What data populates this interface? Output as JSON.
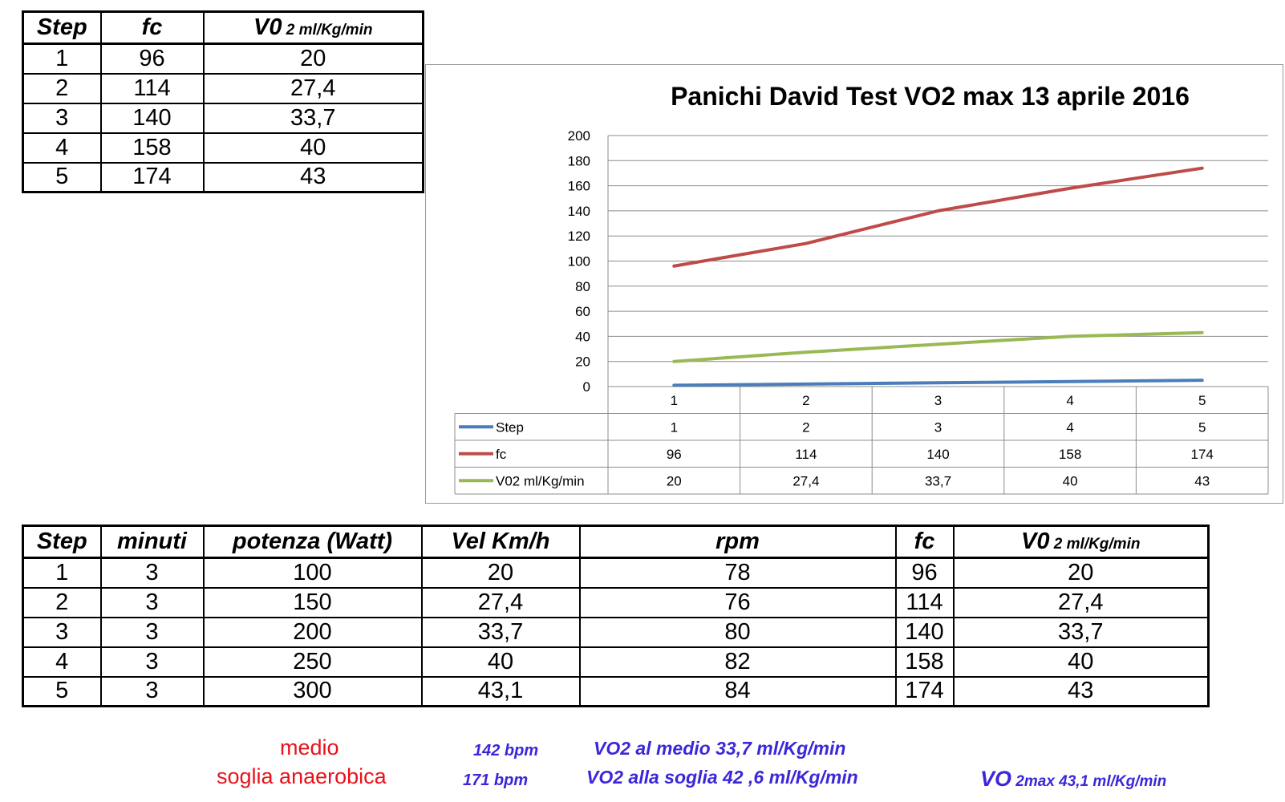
{
  "top_table": {
    "headers": {
      "step": "Step",
      "fc": "fc",
      "vo_main": "V0",
      "vo_sub": " 2 ml/Kg/min"
    },
    "rows": [
      {
        "step": "1",
        "fc": "96",
        "vo2": "20"
      },
      {
        "step": "2",
        "fc": "114",
        "vo2": "27,4"
      },
      {
        "step": "3",
        "fc": "140",
        "vo2": "33,7"
      },
      {
        "step": "4",
        "fc": "158",
        "vo2": "40"
      },
      {
        "step": "5",
        "fc": "174",
        "vo2": "43"
      }
    ]
  },
  "chart_data": {
    "type": "line",
    "title": "Panichi David Test VO2 max 13 aprile 2016",
    "categories": [
      "1",
      "2",
      "3",
      "4",
      "5"
    ],
    "ylim": [
      0,
      200
    ],
    "yticks": [
      0,
      20,
      40,
      60,
      80,
      100,
      120,
      140,
      160,
      180,
      200
    ],
    "grid": true,
    "legend": "data-table-below",
    "series": [
      {
        "name": "Step",
        "color": "#4a7ebb",
        "values": [
          1,
          2,
          3,
          4,
          5
        ],
        "labels": [
          "1",
          "2",
          "3",
          "4",
          "5"
        ]
      },
      {
        "name": "fc",
        "color": "#be4b48",
        "values": [
          96,
          114,
          140,
          158,
          174
        ],
        "labels": [
          "96",
          "114",
          "140",
          "158",
          "174"
        ]
      },
      {
        "name": "V02 ml/Kg/min",
        "color": "#98b954",
        "values": [
          20,
          27.4,
          33.7,
          40,
          43
        ],
        "labels": [
          "20",
          "27,4",
          "33,7",
          "40",
          "43"
        ]
      }
    ]
  },
  "bottom_table": {
    "headers": {
      "step": "Step",
      "minuti": "minuti",
      "potenza": "potenza (Watt)",
      "vel": "Vel Km/h",
      "rpm": "rpm",
      "fc": "fc",
      "vo_main": "V0",
      "vo_sub": " 2 ml/Kg/min"
    },
    "rows": [
      {
        "step": "1",
        "minuti": "3",
        "potenza": "100",
        "vel": "20",
        "rpm": "78",
        "fc": "96",
        "vo2": "20"
      },
      {
        "step": "2",
        "minuti": "3",
        "potenza": "150",
        "vel": "27,4",
        "rpm": "76",
        "fc": "114",
        "vo2": "27,4"
      },
      {
        "step": "3",
        "minuti": "3",
        "potenza": "200",
        "vel": "33,7",
        "rpm": "80",
        "fc": "140",
        "vo2": "33,7"
      },
      {
        "step": "4",
        "minuti": "3",
        "potenza": "250",
        "vel": "40",
        "rpm": "82",
        "fc": "158",
        "vo2": "40"
      },
      {
        "step": "5",
        "minuti": "3",
        "potenza": "300",
        "vel": "43,1",
        "rpm": "84",
        "fc": "174",
        "vo2": "43"
      }
    ]
  },
  "footer": {
    "medio_label": "medio",
    "medio_bpm": "142 bpm",
    "medio_vo2": "VO2 al medio  33,7 ml/Kg/min",
    "soglia_label": "soglia anaerobica",
    "soglia_bpm": "171 bpm",
    "soglia_vo2": "VO2 alla soglia 42 ,6 ml/Kg/min",
    "vomax_main": "VO",
    "vomax_sub": " 2max 43,1 ml/Kg/min",
    "colors": {
      "red": "#e8121c",
      "blue": "#3b27d9"
    }
  }
}
